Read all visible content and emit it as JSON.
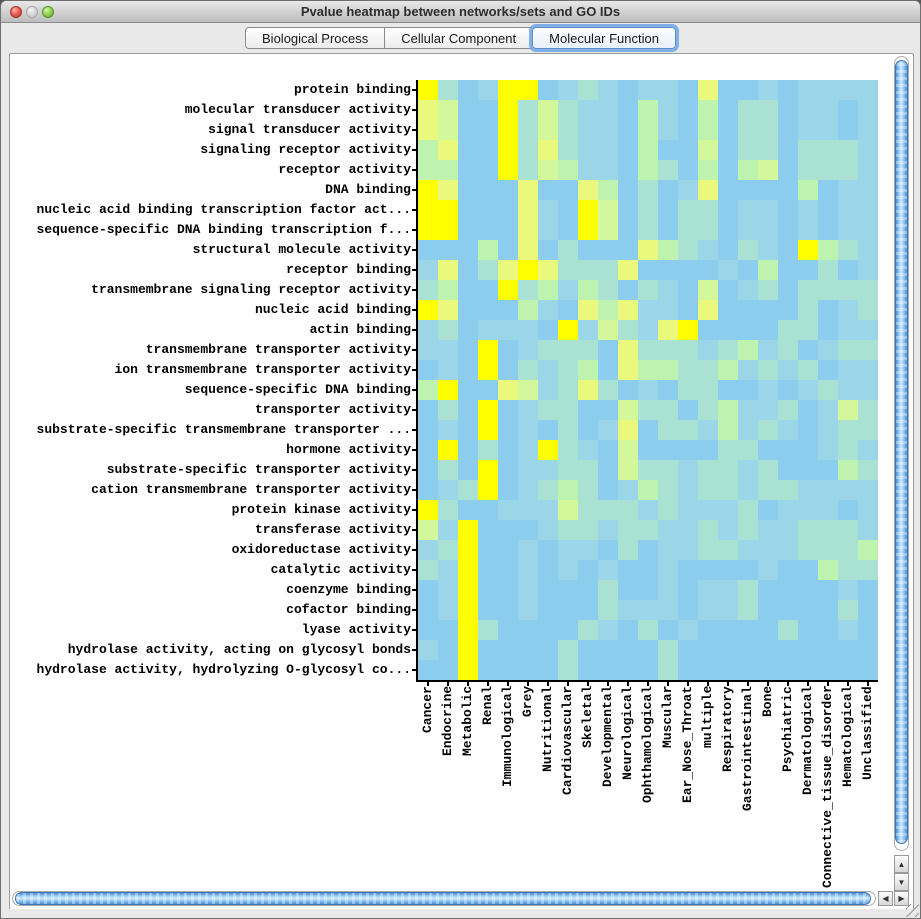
{
  "window": {
    "title": "Pvalue heatmap between networks/sets and GO IDs",
    "traffic_lights": [
      "close-red",
      "minimize-disabled-gray",
      "zoom-green"
    ]
  },
  "tabs": [
    {
      "label": "Biological Process",
      "selected": false
    },
    {
      "label": "Cellular Component",
      "selected": false
    },
    {
      "label": "Molecular Function",
      "selected": true
    }
  ],
  "chart_data": {
    "type": "heatmap",
    "title": "Pvalue heatmap between networks/sets and GO IDs",
    "row_labels": [
      "protein binding",
      "molecular transducer activity",
      "signal transducer activity",
      "signaling receptor activity",
      "receptor activity",
      "DNA binding",
      "nucleic acid binding transcription factor act...",
      "sequence-specific DNA binding transcription f...",
      "structural molecule activity",
      "receptor binding",
      "transmembrane signaling receptor activity",
      "nucleic acid binding",
      "actin binding",
      "transmembrane transporter activity",
      "ion transmembrane transporter activity",
      "sequence-specific DNA binding",
      "transporter activity",
      "substrate-specific transmembrane transporter ...",
      "hormone activity",
      "substrate-specific transporter activity",
      "cation transmembrane transporter activity",
      "protein kinase activity",
      "transferase activity",
      "oxidoreductase activity",
      "catalytic activity",
      "coenzyme binding",
      "cofactor binding",
      "lyase activity",
      "hydrolase activity, acting on glycosyl bonds",
      "hydrolase activity, hydrolyzing O-glycosyl co..."
    ],
    "col_labels": [
      "Cancer",
      "Endocrine",
      "Metabolic",
      "Renal",
      "Immunological",
      "Grey",
      "Nutritional",
      "Cardiovascular",
      "Skeletal",
      "Developmental",
      "Neurological",
      "Ophthamological",
      "Muscular",
      "Ear_Nose_Throat",
      "multiple",
      "Respiratory",
      "Gastrointestinal",
      "Bone",
      "Psychiatric",
      "Dermatological",
      "Connective_tissue_disorder",
      "Hematological",
      "Unclassified"
    ],
    "value_scale": "significance level 0 (low, blue) to 6 (high, yellow)",
    "palette": [
      "#8CCDEE",
      "#9AD5E8",
      "#A9E2D3",
      "#BDF2AF",
      "#D2F89B",
      "#EAF87C",
      "#FFFF00"
    ],
    "grid": [
      "62016601210110500101111",
      "54006242110310302201101",
      "54006242110310302201101",
      "35006252110300402202221",
      "33006243110320303402221",
      "65000500530201500003011",
      "66000510640202201101011",
      "66000510640202201101011",
      "00030502000532102106321",
      "15025652225000010300201",
      "23006231320210401202222",
      "65000310535110500002012",
      "12011106142156000022011",
      "11060122205222123120122",
      "01060212305332231212011",
      "36005412520102200101211",
      "02060122004220231120142",
      "01060102015022131210122",
      "06020162104000022000121",
      "02060112204221221200032",
      "01260123201321221221111",
      "62001114222121112011101",
      "41600012212211212112221",
      "12600101102011221112223",
      "21600101010010000100322",
      "01600100020010112000010",
      "01600100021110112000020",
      "00620000210201000020010",
      "10600002000020000000000",
      "00600002000020000000000"
    ]
  },
  "scrollbars": {
    "v_up_arrow": "▲",
    "v_down_arrow": "▼",
    "h_left_arrow": "◀",
    "h_right_arrow": "▶"
  }
}
